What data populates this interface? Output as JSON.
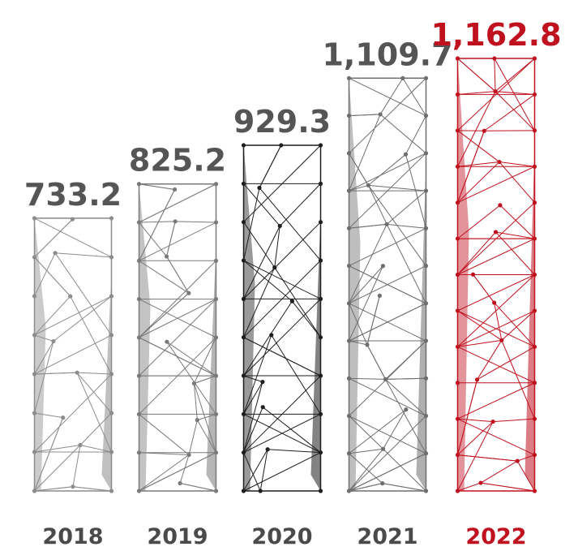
{
  "chart_data": {
    "type": "bar",
    "categories": [
      "2018",
      "2019",
      "2020",
      "2021",
      "2022"
    ],
    "values": [
      733.2,
      825.2,
      929.3,
      1109.7,
      1162.8
    ],
    "value_labels": [
      "733.2",
      "825.2",
      "929.3",
      "1,109.7",
      "1,162.8"
    ],
    "colors": [
      "#8c8c8c",
      "#7a7a7a",
      "#1e1e1e",
      "#6e6e6e",
      "#c0111f"
    ],
    "label_colors": [
      "#4a4a4a",
      "#4a4a4a",
      "#4a4a4a",
      "#4a4a4a",
      "#c0111f"
    ]
  }
}
